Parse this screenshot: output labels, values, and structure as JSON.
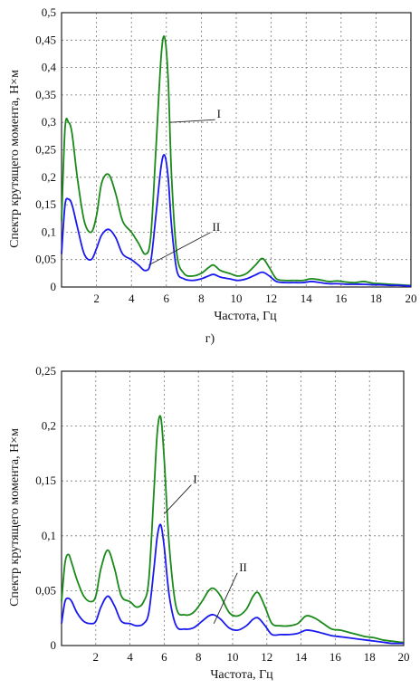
{
  "caption": "г)",
  "chart_data": [
    {
      "type": "line",
      "xlabel": "Частота, Гц",
      "ylabel": "Спектр  крутящего момента, Н×м",
      "xlim": [
        0,
        20
      ],
      "ylim": [
        0,
        0.5
      ],
      "xticks": [
        2,
        4,
        6,
        8,
        10,
        12,
        14,
        16,
        18,
        20
      ],
      "xtick_labels": [
        "2",
        "4",
        "6",
        "8",
        "10",
        "12",
        "14",
        "16",
        "18",
        "20"
      ],
      "yticks": [
        0,
        0.05,
        0.1,
        0.15,
        0.2,
        0.25,
        0.3,
        0.35,
        0.4,
        0.45,
        0.5
      ],
      "ytick_labels": [
        "0",
        "0,05",
        "0,1",
        "0,15",
        "0,2",
        "0,25",
        "0,3",
        "0,35",
        "0,4",
        "0,45",
        "0,5"
      ],
      "grid": true,
      "annotations": [
        {
          "text": "I",
          "series": "I",
          "at": [
            6.2,
            0.3
          ]
        },
        {
          "text": "II",
          "series": "II",
          "at": [
            5.0,
            0.04
          ]
        }
      ],
      "series": [
        {
          "name": "I",
          "color": "#1a8a1a",
          "x": [
            0.0,
            0.2,
            0.4,
            0.6,
            0.9,
            1.3,
            1.7,
            2.0,
            2.3,
            2.7,
            3.1,
            3.5,
            4.0,
            4.4,
            4.8,
            5.1,
            5.4,
            5.7,
            5.9,
            6.1,
            6.3,
            6.6,
            7.0,
            7.5,
            8.0,
            8.4,
            8.7,
            9.1,
            9.6,
            10.1,
            10.6,
            11.1,
            11.5,
            11.9,
            12.3,
            12.8,
            13.3,
            13.8,
            14.3,
            14.8,
            15.3,
            15.8,
            16.3,
            16.8,
            17.3,
            17.8,
            18.3,
            18.8,
            19.3,
            19.8,
            20.0
          ],
          "values": [
            0.12,
            0.29,
            0.3,
            0.28,
            0.2,
            0.12,
            0.1,
            0.13,
            0.19,
            0.205,
            0.17,
            0.12,
            0.1,
            0.08,
            0.06,
            0.09,
            0.25,
            0.42,
            0.455,
            0.38,
            0.2,
            0.06,
            0.025,
            0.02,
            0.025,
            0.035,
            0.04,
            0.03,
            0.025,
            0.02,
            0.025,
            0.04,
            0.052,
            0.035,
            0.015,
            0.012,
            0.012,
            0.012,
            0.015,
            0.013,
            0.01,
            0.011,
            0.009,
            0.008,
            0.01,
            0.007,
            0.006,
            0.005,
            0.004,
            0.003,
            0.003
          ]
        },
        {
          "name": "II",
          "color": "#1a1aee",
          "x": [
            0.0,
            0.2,
            0.4,
            0.6,
            0.9,
            1.3,
            1.7,
            2.0,
            2.3,
            2.7,
            3.1,
            3.5,
            4.0,
            4.4,
            4.8,
            5.1,
            5.4,
            5.7,
            5.9,
            6.1,
            6.3,
            6.6,
            7.0,
            7.5,
            8.0,
            8.4,
            8.7,
            9.1,
            9.6,
            10.1,
            10.6,
            11.1,
            11.5,
            11.9,
            12.3,
            12.8,
            13.3,
            13.8,
            14.3,
            14.8,
            15.3,
            15.8,
            16.3,
            16.8,
            17.3,
            17.8,
            18.3,
            18.8,
            19.3,
            19.8,
            20.0
          ],
          "values": [
            0.06,
            0.15,
            0.16,
            0.15,
            0.11,
            0.06,
            0.05,
            0.07,
            0.095,
            0.105,
            0.09,
            0.06,
            0.05,
            0.04,
            0.03,
            0.045,
            0.13,
            0.22,
            0.24,
            0.2,
            0.11,
            0.03,
            0.015,
            0.012,
            0.015,
            0.02,
            0.023,
            0.018,
            0.015,
            0.012,
            0.015,
            0.022,
            0.027,
            0.02,
            0.01,
            0.008,
            0.008,
            0.008,
            0.01,
            0.008,
            0.006,
            0.006,
            0.005,
            0.005,
            0.005,
            0.004,
            0.004,
            0.003,
            0.003,
            0.002,
            0.002
          ]
        }
      ]
    },
    {
      "type": "line",
      "xlabel": "Частота, Гц",
      "ylabel": "Спектр  крутящего момента, Н×м",
      "xlim": [
        0,
        20
      ],
      "ylim": [
        0,
        0.25
      ],
      "xticks": [
        2,
        4,
        6,
        8,
        10,
        12,
        14,
        16,
        18,
        20
      ],
      "xtick_labels": [
        "2",
        "4",
        "6",
        "8",
        "10",
        "12",
        "14",
        "16",
        "18",
        "20"
      ],
      "yticks": [
        0,
        0.05,
        0.1,
        0.15,
        0.2,
        0.25
      ],
      "ytick_labels": [
        "0",
        "0,05",
        "0,1",
        "0,15",
        "0,2",
        "0,25"
      ],
      "grid": true,
      "annotations": [
        {
          "text": "I",
          "series": "I",
          "at": [
            6.0,
            0.12
          ]
        },
        {
          "text": "II",
          "series": "II",
          "at": [
            8.9,
            0.02
          ]
        }
      ],
      "series": [
        {
          "name": "I",
          "color": "#1a8a1a",
          "x": [
            0.0,
            0.2,
            0.4,
            0.6,
            0.9,
            1.3,
            1.7,
            2.0,
            2.3,
            2.7,
            3.1,
            3.5,
            4.0,
            4.4,
            4.8,
            5.1,
            5.4,
            5.6,
            5.8,
            6.0,
            6.3,
            6.7,
            7.2,
            7.7,
            8.2,
            8.6,
            8.9,
            9.3,
            9.8,
            10.3,
            10.8,
            11.2,
            11.5,
            11.9,
            12.3,
            12.8,
            13.3,
            13.8,
            14.3,
            14.8,
            15.3,
            15.8,
            16.3,
            16.8,
            17.3,
            17.8,
            18.3,
            18.8,
            19.3,
            19.8,
            20.0
          ],
          "values": [
            0.04,
            0.075,
            0.083,
            0.075,
            0.06,
            0.045,
            0.04,
            0.045,
            0.07,
            0.087,
            0.07,
            0.045,
            0.04,
            0.035,
            0.04,
            0.06,
            0.14,
            0.195,
            0.208,
            0.17,
            0.09,
            0.035,
            0.028,
            0.03,
            0.04,
            0.05,
            0.052,
            0.045,
            0.03,
            0.027,
            0.033,
            0.045,
            0.048,
            0.035,
            0.02,
            0.018,
            0.018,
            0.02,
            0.027,
            0.025,
            0.02,
            0.015,
            0.014,
            0.012,
            0.01,
            0.008,
            0.007,
            0.005,
            0.004,
            0.003,
            0.003
          ]
        },
        {
          "name": "II",
          "color": "#1a1aee",
          "x": [
            0.0,
            0.2,
            0.4,
            0.6,
            0.9,
            1.3,
            1.7,
            2.0,
            2.3,
            2.7,
            3.1,
            3.5,
            4.0,
            4.4,
            4.8,
            5.1,
            5.4,
            5.6,
            5.8,
            6.0,
            6.3,
            6.7,
            7.2,
            7.7,
            8.2,
            8.6,
            8.9,
            9.3,
            9.8,
            10.3,
            10.8,
            11.2,
            11.5,
            11.9,
            12.3,
            12.8,
            13.3,
            13.8,
            14.3,
            14.8,
            15.3,
            15.8,
            16.3,
            16.8,
            17.3,
            17.8,
            18.3,
            18.8,
            19.3,
            19.8,
            20.0
          ],
          "values": [
            0.02,
            0.04,
            0.043,
            0.04,
            0.03,
            0.022,
            0.02,
            0.022,
            0.035,
            0.045,
            0.036,
            0.022,
            0.02,
            0.018,
            0.02,
            0.03,
            0.07,
            0.1,
            0.11,
            0.09,
            0.045,
            0.018,
            0.015,
            0.016,
            0.022,
            0.027,
            0.028,
            0.024,
            0.016,
            0.014,
            0.018,
            0.024,
            0.025,
            0.018,
            0.01,
            0.01,
            0.01,
            0.011,
            0.014,
            0.013,
            0.011,
            0.009,
            0.008,
            0.007,
            0.006,
            0.005,
            0.004,
            0.003,
            0.002,
            0.002,
            0.002
          ]
        }
      ]
    }
  ]
}
